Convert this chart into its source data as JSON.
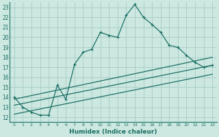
{
  "xlabel": "Humidex (Indice chaleur)",
  "x_ticks": [
    0,
    1,
    2,
    3,
    4,
    5,
    6,
    7,
    8,
    9,
    10,
    11,
    12,
    13,
    14,
    15,
    16,
    17,
    18,
    19,
    20,
    21,
    22,
    23
  ],
  "y_ticks": [
    12,
    13,
    14,
    15,
    16,
    17,
    18,
    19,
    20,
    21,
    22,
    23
  ],
  "xlim": [
    -0.5,
    23.5
  ],
  "ylim": [
    11.5,
    23.5
  ],
  "bg_color": "#cce8e0",
  "grid_color": "#aacfc8",
  "line_color": "#1a6e64",
  "main_series_x": [
    0,
    1,
    2,
    3,
    4,
    5,
    6,
    7,
    8,
    9,
    10,
    11,
    12,
    13,
    14,
    15,
    16,
    17,
    18,
    19,
    20,
    21,
    22,
    23
  ],
  "main_series_y": [
    14.0,
    13.0,
    12.5,
    12.2,
    12.2,
    15.2,
    13.8,
    17.3,
    18.5,
    18.8,
    20.5,
    20.2,
    20.0,
    22.2,
    23.3,
    22.0,
    21.3,
    20.5,
    19.2,
    19.0,
    18.2,
    17.5,
    17.0,
    17.2
  ],
  "line1_x": [
    0,
    23
  ],
  "line1_y": [
    13.8,
    18.0
  ],
  "line2_x": [
    0,
    23
  ],
  "line2_y": [
    13.2,
    17.2
  ],
  "line3_x": [
    0,
    23
  ],
  "line3_y": [
    12.3,
    16.3
  ]
}
